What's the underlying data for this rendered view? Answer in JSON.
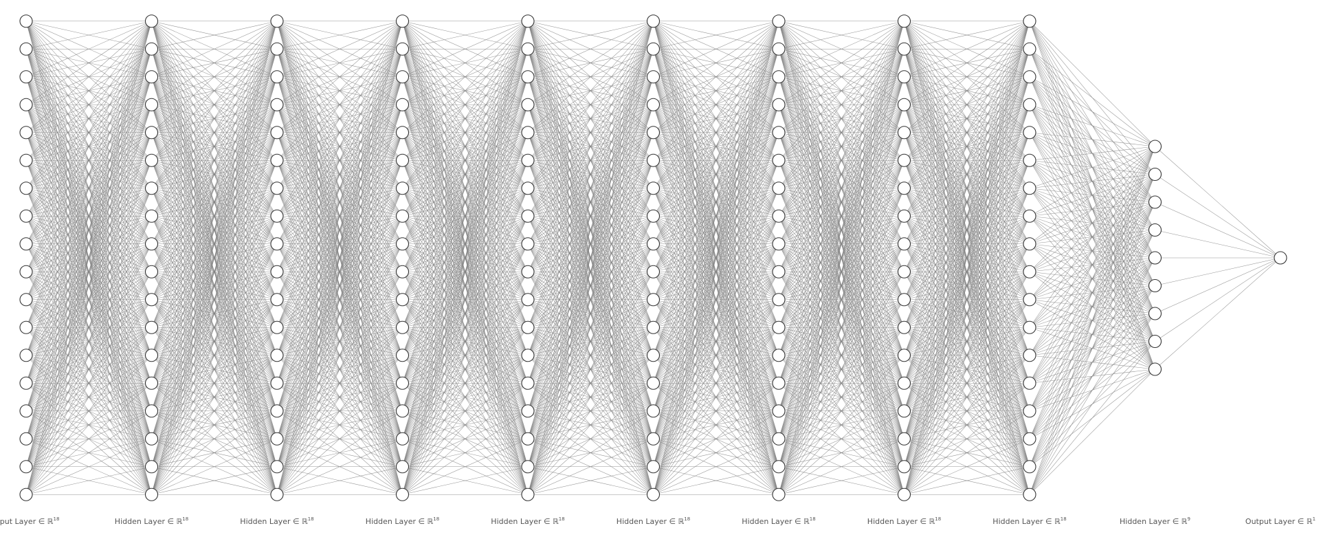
{
  "network": {
    "layers": [
      {
        "prefix": "Input Layer ∈ ℝ",
        "exponent": "18",
        "size": 18
      },
      {
        "prefix": "Hidden Layer ∈ ℝ",
        "exponent": "18",
        "size": 18
      },
      {
        "prefix": "Hidden Layer ∈ ℝ",
        "exponent": "18",
        "size": 18
      },
      {
        "prefix": "Hidden Layer ∈ ℝ",
        "exponent": "18",
        "size": 18
      },
      {
        "prefix": "Hidden Layer ∈ ℝ",
        "exponent": "18",
        "size": 18
      },
      {
        "prefix": "Hidden Layer ∈ ℝ",
        "exponent": "18",
        "size": 18
      },
      {
        "prefix": "Hidden Layer ∈ ℝ",
        "exponent": "18",
        "size": 18
      },
      {
        "prefix": "Hidden Layer ∈ ℝ",
        "exponent": "18",
        "size": 18
      },
      {
        "prefix": "Hidden Layer ∈ ℝ",
        "exponent": "18",
        "size": 18
      },
      {
        "prefix": "Hidden Layer ∈ ℝ",
        "exponent": "9",
        "size": 9
      },
      {
        "prefix": "Output Layer ∈ ℝ",
        "exponent": "1",
        "size": 1
      }
    ],
    "colors": {
      "edge": "#808080",
      "node_fill": "#ffffff",
      "node_stroke": "#333333",
      "label": "#555555"
    }
  }
}
